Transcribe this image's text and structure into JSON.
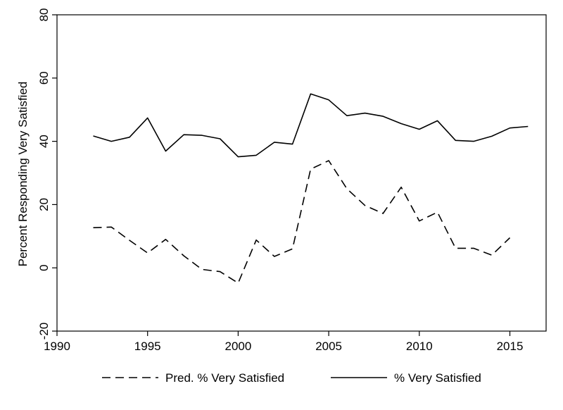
{
  "chart_data": {
    "type": "line",
    "title": "",
    "xlabel": "",
    "ylabel": "Percent Responding Very Satisfied",
    "xlim": [
      1990,
      2017
    ],
    "ylim": [
      -20,
      80
    ],
    "xticks": [
      1990,
      1995,
      2000,
      2005,
      2010,
      2015
    ],
    "yticks": [
      -20,
      0,
      20,
      40,
      60,
      80
    ],
    "grid": false,
    "legend": "bottom",
    "series": [
      {
        "name": "Pred. % Very Satisfied",
        "style": "dashed",
        "color": "#000000",
        "x": [
          1992,
          1993,
          1994,
          1995,
          1996,
          1997,
          1998,
          1999,
          2000,
          2001,
          2002,
          2003,
          2004,
          2005,
          2006,
          2007,
          2008,
          2009,
          2010,
          2011,
          2012,
          2013,
          2014,
          2015
        ],
        "y": [
          12.7,
          12.9,
          8.7,
          4.7,
          9.0,
          3.8,
          -0.5,
          -1.2,
          -4.8,
          8.8,
          3.6,
          6.0,
          31.2,
          33.9,
          25.0,
          19.7,
          17.2,
          25.5,
          14.8,
          17.6,
          6.2,
          6.2,
          4.0,
          9.5
        ]
      },
      {
        "name": "% Very Satisfied",
        "style": "solid",
        "color": "#000000",
        "x": [
          1992,
          1993,
          1994,
          1995,
          1996,
          1997,
          1998,
          1999,
          2000,
          2001,
          2002,
          2003,
          2004,
          2005,
          2006,
          2007,
          2008,
          2009,
          2010,
          2011,
          2012,
          2013,
          2014,
          2015,
          2016
        ],
        "y": [
          41.7,
          40.0,
          41.3,
          47.4,
          36.9,
          42.1,
          41.9,
          40.8,
          35.1,
          35.6,
          39.7,
          39.1,
          55.0,
          53.1,
          48.1,
          48.9,
          47.9,
          45.6,
          43.8,
          46.5,
          40.3,
          40.0,
          41.6,
          44.2,
          44.7
        ]
      }
    ]
  }
}
